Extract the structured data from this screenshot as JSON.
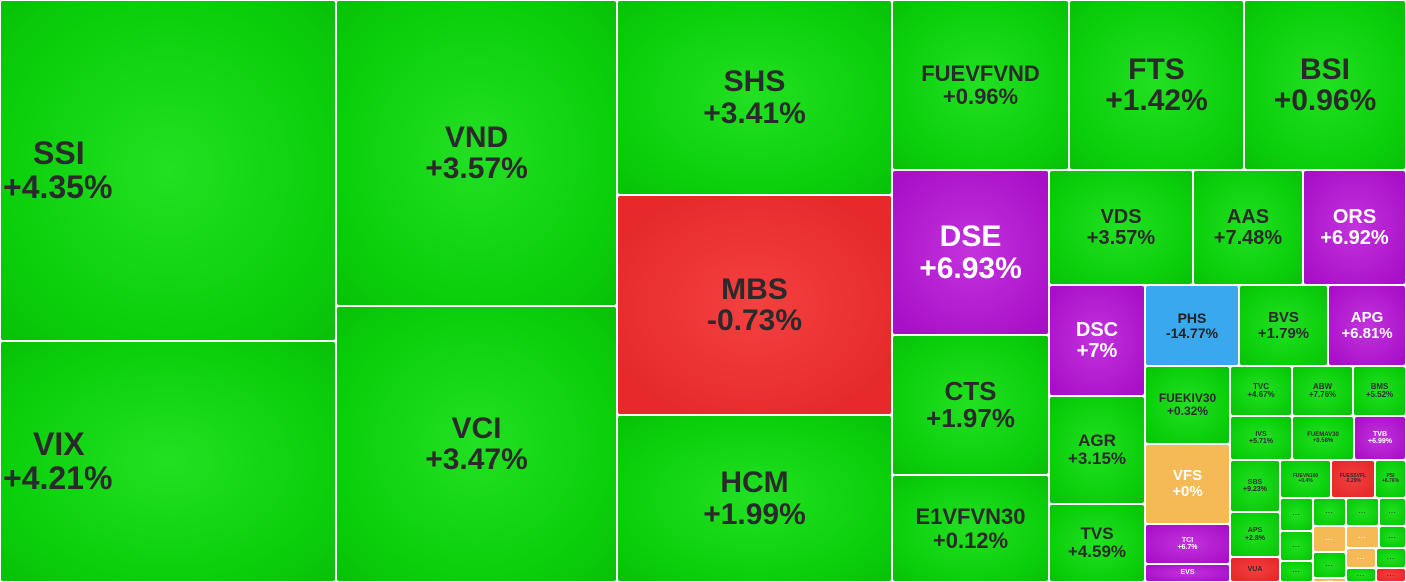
{
  "chart_data": {
    "type": "heatmap",
    "colors": {
      "up": "#0bcf0b",
      "down": "#e62a2a",
      "ceiling": "#a80fc8",
      "floor": "#3aa8ee",
      "reference": "#f5b955"
    },
    "tiles": [
      {
        "symbol": "SSI",
        "change": "+4.35%",
        "status": "up",
        "value": 4.35
      },
      {
        "symbol": "VIX",
        "change": "+4.21%",
        "status": "up",
        "value": 4.21
      },
      {
        "symbol": "VND",
        "change": "+3.57%",
        "status": "up",
        "value": 3.57
      },
      {
        "symbol": "VCI",
        "change": "+3.47%",
        "status": "up",
        "value": 3.47
      },
      {
        "symbol": "SHS",
        "change": "+3.41%",
        "status": "up",
        "value": 3.41
      },
      {
        "symbol": "MBS",
        "change": "-0.73%",
        "status": "down",
        "value": -0.73
      },
      {
        "symbol": "HCM",
        "change": "+1.99%",
        "status": "up",
        "value": 1.99
      },
      {
        "symbol": "FUEVFVND",
        "change": "+0.96%",
        "status": "up",
        "value": 0.96
      },
      {
        "symbol": "FTS",
        "change": "+1.42%",
        "status": "up",
        "value": 1.42
      },
      {
        "symbol": "BSI",
        "change": "+0.96%",
        "status": "up",
        "value": 0.96
      },
      {
        "symbol": "DSE",
        "change": "+6.93%",
        "status": "ceiling",
        "value": 6.93
      },
      {
        "symbol": "CTS",
        "change": "+1.97%",
        "status": "up",
        "value": 1.97
      },
      {
        "symbol": "E1VFVN30",
        "change": "+0.12%",
        "status": "up",
        "value": 0.12
      },
      {
        "symbol": "VDS",
        "change": "+3.57%",
        "status": "up",
        "value": 3.57
      },
      {
        "symbol": "AAS",
        "change": "+7.48%",
        "status": "up",
        "value": 7.48
      },
      {
        "symbol": "ORS",
        "change": "+6.92%",
        "status": "ceiling",
        "value": 6.92
      },
      {
        "symbol": "DSC",
        "change": "+7%",
        "status": "ceiling",
        "value": 7
      },
      {
        "symbol": "PHS",
        "change": "-14.77%",
        "status": "floor",
        "value": -14.77
      },
      {
        "symbol": "BVS",
        "change": "+1.79%",
        "status": "up",
        "value": 1.79
      },
      {
        "symbol": "APG",
        "change": "+6.81%",
        "status": "ceiling",
        "value": 6.81
      },
      {
        "symbol": "AGR",
        "change": "+3.15%",
        "status": "up",
        "value": 3.15
      },
      {
        "symbol": "TVS",
        "change": "+4.59%",
        "status": "up",
        "value": 4.59
      },
      {
        "symbol": "FUEKIV30",
        "change": "+0.32%",
        "status": "up",
        "value": 0.32
      },
      {
        "symbol": "VFS",
        "change": "+0%",
        "status": "reference",
        "value": 0
      },
      {
        "symbol": "TCI",
        "change": "+6.7%",
        "status": "ceiling",
        "value": 6.7
      },
      {
        "symbol": "EVS",
        "change": "",
        "status": "ceiling",
        "value": null
      },
      {
        "symbol": "TVC",
        "change": "+4.67%",
        "status": "up",
        "value": 4.67
      },
      {
        "symbol": "ABW",
        "change": "+7.76%",
        "status": "up",
        "value": 7.76
      },
      {
        "symbol": "BMS",
        "change": "+5.52%",
        "status": "up",
        "value": 5.52
      },
      {
        "symbol": "IVS",
        "change": "+5.71%",
        "status": "up",
        "value": 5.71
      },
      {
        "symbol": "FUEMAV30",
        "change": "+0.58%",
        "status": "up",
        "value": 0.58
      },
      {
        "symbol": "TVB",
        "change": "+6.99%",
        "status": "ceiling",
        "value": 6.99
      },
      {
        "symbol": "SBS",
        "change": "+9.23%",
        "status": "up",
        "value": 9.23
      },
      {
        "symbol": "FUEVN100",
        "change": "+0.4%",
        "status": "up",
        "value": 0.4
      },
      {
        "symbol": "FUESSVFL",
        "change": "-0.29%",
        "status": "down",
        "value": -0.29
      },
      {
        "symbol": "PSI",
        "change": "+6.76%",
        "status": "up",
        "value": 6.76
      },
      {
        "symbol": "APS",
        "change": "+2.8%",
        "status": "up",
        "value": 2.8
      },
      {
        "symbol": "VUA",
        "change": "",
        "status": "down",
        "value": null
      },
      {
        "symbol": "...",
        "change": "",
        "status": "up",
        "value": null
      },
      {
        "symbol": "...",
        "change": "",
        "status": "up",
        "value": null
      },
      {
        "symbol": "...",
        "change": "",
        "status": "up",
        "value": null
      },
      {
        "symbol": "...",
        "change": "",
        "status": "up",
        "value": null
      },
      {
        "symbol": "...",
        "change": "",
        "status": "up",
        "value": null
      },
      {
        "symbol": "...",
        "change": "",
        "status": "reference",
        "value": null
      },
      {
        "symbol": "...",
        "change": "",
        "status": "reference",
        "value": null
      },
      {
        "symbol": "...",
        "change": "",
        "status": "up",
        "value": null
      },
      {
        "symbol": "...",
        "change": "",
        "status": "up",
        "value": null
      },
      {
        "symbol": "...",
        "change": "",
        "status": "up",
        "value": null
      },
      {
        "symbol": "...",
        "change": "",
        "status": "reference",
        "value": null
      },
      {
        "symbol": "...",
        "change": "",
        "status": "up",
        "value": null
      },
      {
        "symbol": "...",
        "change": "",
        "status": "up",
        "value": null
      },
      {
        "symbol": "...",
        "change": "",
        "status": "down",
        "value": null
      },
      {
        "symbol": "...",
        "change": "",
        "status": "reference",
        "value": null
      },
      {
        "symbol": "...",
        "change": "",
        "status": "up",
        "value": null
      },
      {
        "symbol": "...",
        "change": "",
        "status": "up",
        "value": null
      }
    ]
  }
}
